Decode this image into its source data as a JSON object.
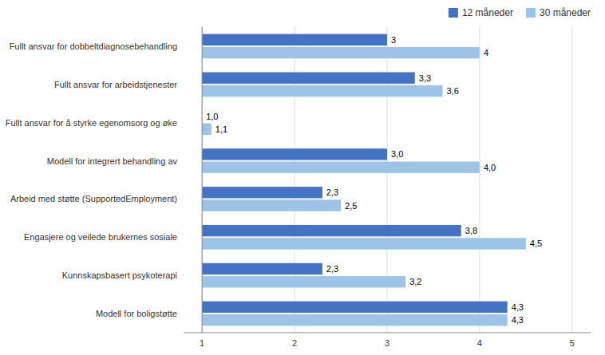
{
  "chart_data": {
    "type": "bar",
    "orientation": "horizontal",
    "categories": [
      "Modell for boligstøtte",
      "Kunnskapsbasert psykoterapi",
      "Engasjere og veilede brukernes sosiale",
      "Arbeid med støtte (SupportedEmployment)",
      "Modell for integrert behandling av",
      "Fullt ansvar for å styrke egenomsorg og øke",
      "Fullt ansvar for arbeidstjenester",
      "Fullt ansvar for dobbeltdiagnosebehandling"
    ],
    "series": [
      {
        "name": "12 måneder",
        "color": "#4472C4",
        "values": [
          4.3,
          2.3,
          3.8,
          2.3,
          3.0,
          1.0,
          3.3,
          3.0
        ],
        "value_labels": [
          "4,3",
          "2,3",
          "3,8",
          "2,3",
          "3,0",
          "1,0",
          "3,3",
          "3"
        ]
      },
      {
        "name": "30 måneder",
        "color": "#9DC3E6",
        "values": [
          4.3,
          3.2,
          4.5,
          2.5,
          4.0,
          1.1,
          3.6,
          4.0
        ],
        "value_labels": [
          "4,3",
          "3,2",
          "4,5",
          "2,5",
          "4,0",
          "1,1",
          "3,6",
          "4"
        ]
      }
    ],
    "baseline": 1,
    "xlim": [
      0.8,
      5.2
    ],
    "xticks": [
      1,
      2,
      3,
      4,
      5
    ],
    "grid": true,
    "legend": "upper right",
    "data_labels": true
  }
}
